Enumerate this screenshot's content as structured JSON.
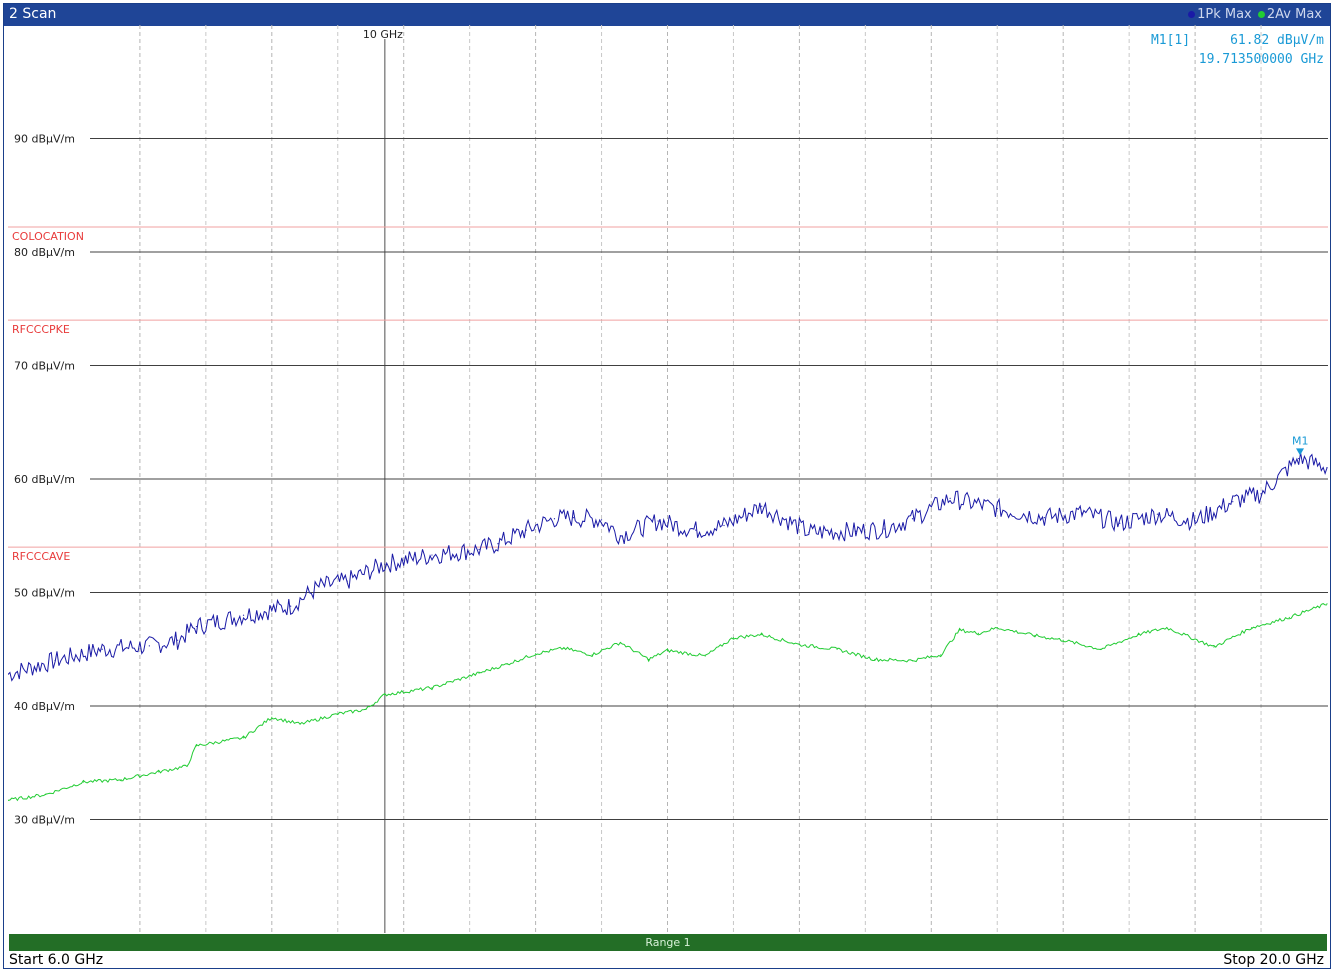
{
  "window": {
    "title": "2 Scan",
    "legend": [
      {
        "label": "1Pk Max",
        "color": "#1a1aa6"
      },
      {
        "label": "2Av Max",
        "color": "#22cc33"
      }
    ]
  },
  "marker": {
    "name": "M1[1]",
    "value": "61.82 dBµV/m",
    "frequency": "19.713500000 GHz",
    "tag": "M1",
    "color": "#1a9ad6"
  },
  "range_label": "Range 1",
  "start_label": "Start 6.0 GHz",
  "stop_label": "Stop 20.0 GHz",
  "chart_data": {
    "type": "line",
    "x_unit": "GHz",
    "y_unit": "dBµV/m",
    "xlim": [
      6.0,
      20.0
    ],
    "ylim": [
      20,
      100
    ],
    "grid": true,
    "center_label": "10 GHz",
    "y_tick_labels": [
      {
        "value": 90,
        "label": "90 dBµV/m"
      },
      {
        "value": 80,
        "label": "80 dBµV/m"
      },
      {
        "value": 70,
        "label": "70 dBµV/m"
      },
      {
        "value": 60,
        "label": "60 dBµV/m"
      },
      {
        "value": 50,
        "label": "50 dBµV/m"
      },
      {
        "value": 40,
        "label": "40 dBµV/m"
      },
      {
        "value": 30,
        "label": "30 dBµV/m"
      }
    ],
    "limit_lines": [
      {
        "label": "COLOCATION",
        "value": 82.2,
        "color": "#e83b3b"
      },
      {
        "label": "RFCCCPKE",
        "value": 74.0,
        "color": "#e83b3b"
      },
      {
        "label": "RFCCCAVE",
        "value": 54.0,
        "color": "#e83b3b"
      }
    ],
    "series": [
      {
        "name": "1Pk Max",
        "color": "#1a1aa6",
        "x": [
          6.0,
          6.5,
          7.0,
          7.5,
          7.8,
          8.0,
          8.5,
          9.0,
          9.3,
          9.6,
          10.0,
          10.5,
          11.0,
          11.2,
          11.5,
          11.8,
          12.0,
          12.3,
          12.5,
          12.9,
          13.3,
          13.6,
          14.0,
          14.5,
          15.0,
          15.3,
          15.6,
          16.0,
          16.5,
          17.0,
          17.4,
          17.8,
          18.2,
          18.6,
          19.0,
          19.3,
          19.7,
          20.0
        ],
        "y": [
          42.8,
          44.0,
          45.0,
          45.3,
          45.8,
          47.0,
          48.0,
          48.8,
          50.5,
          51.0,
          52.5,
          53.3,
          53.8,
          54.3,
          55.5,
          56.5,
          56.6,
          56.4,
          55.0,
          56.3,
          55.5,
          55.9,
          57.6,
          55.3,
          55.4,
          55.6,
          56.5,
          58.3,
          57.4,
          56.6,
          57.0,
          56.1,
          56.9,
          56.3,
          58.0,
          58.7,
          61.8,
          61.0
        ]
      },
      {
        "name": "2Av Max",
        "color": "#22cc33",
        "x": [
          6.0,
          6.4,
          6.8,
          7.2,
          7.6,
          7.9,
          8.0,
          8.5,
          8.8,
          9.1,
          9.5,
          9.8,
          10.0,
          10.5,
          11.0,
          11.3,
          11.6,
          11.9,
          12.2,
          12.5,
          12.8,
          13.0,
          13.4,
          13.7,
          14.0,
          14.4,
          14.8,
          15.2,
          15.6,
          15.9,
          16.1,
          16.3,
          16.5,
          16.9,
          17.2,
          17.6,
          18.0,
          18.3,
          18.8,
          19.2,
          19.6,
          20.0
        ],
        "y": [
          31.7,
          32.2,
          33.3,
          33.5,
          34.2,
          34.7,
          36.5,
          37.2,
          39.0,
          38.4,
          39.3,
          39.7,
          41.0,
          41.6,
          42.9,
          43.7,
          44.6,
          45.1,
          44.5,
          45.6,
          44.1,
          44.9,
          44.4,
          46.0,
          46.3,
          45.4,
          45.0,
          44.1,
          44.0,
          44.5,
          46.7,
          46.4,
          46.9,
          46.2,
          45.8,
          45.0,
          46.3,
          46.9,
          45.2,
          46.9,
          47.8,
          49.0
        ]
      }
    ]
  }
}
